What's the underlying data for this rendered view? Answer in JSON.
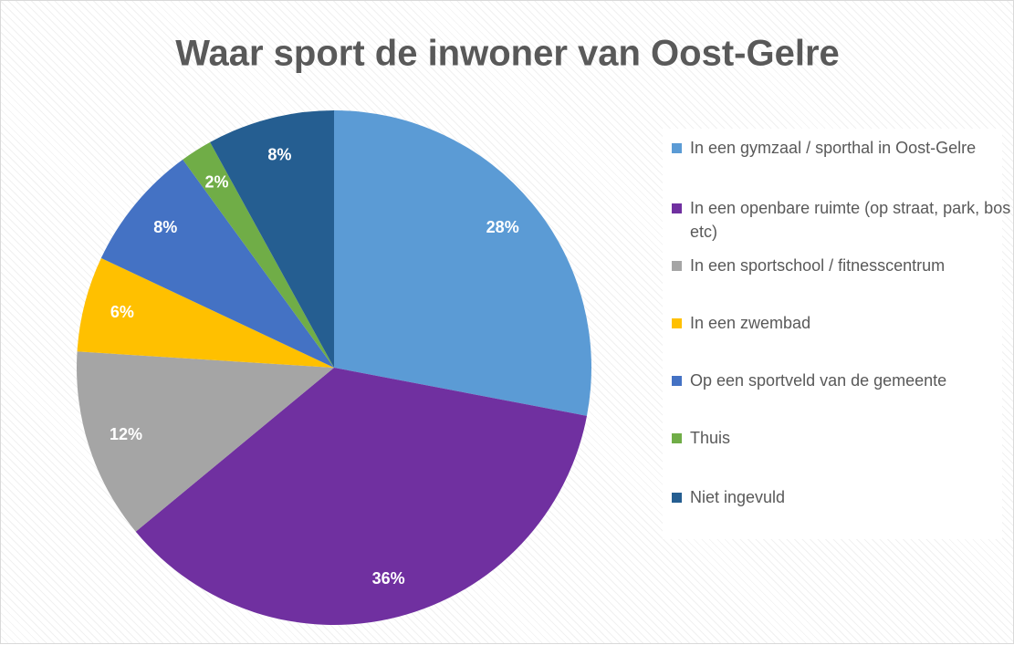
{
  "chart_data": {
    "type": "pie",
    "title": "Waar sport de inwoner van Oost-Gelre",
    "categories": [
      "In een gymzaal / sporthal in Oost-Gelre",
      "In een openbare ruimte (op straat, park, bos etc)",
      "In een sportschool / fitnesscentrum",
      "In een zwembad",
      "Op een sportveld van de gemeente",
      "Thuis",
      "Niet ingevuld"
    ],
    "values": [
      28,
      36,
      12,
      6,
      8,
      2,
      8
    ],
    "value_labels": [
      "28%",
      "36%",
      "12%",
      "6%",
      "8%",
      "2%",
      "8%"
    ],
    "colors": [
      "#5b9bd5",
      "#7030a0",
      "#a5a5a5",
      "#ffc000",
      "#4472c4",
      "#70ad47",
      "#255e91"
    ],
    "legend": "right"
  }
}
